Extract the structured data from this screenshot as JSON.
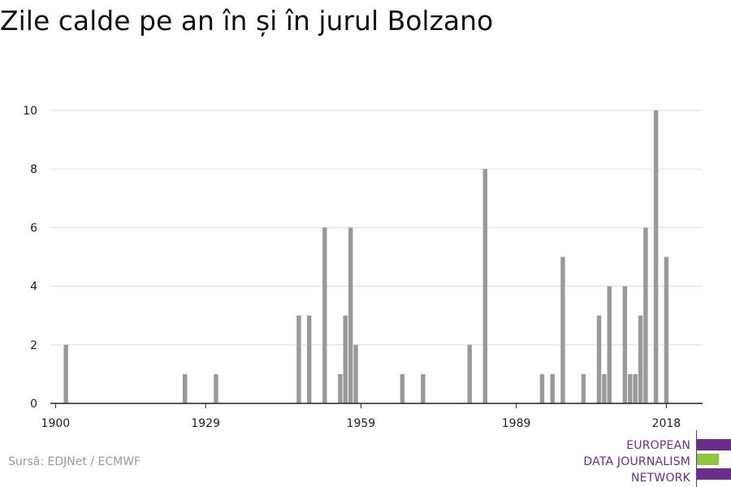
{
  "chart_data": {
    "type": "bar",
    "title": "Zile calde pe an în și în jurul Bolzano",
    "x": [
      1902,
      1925,
      1931,
      1947,
      1949,
      1952,
      1955,
      1956,
      1957,
      1958,
      1967,
      1971,
      1980,
      1983,
      1994,
      1996,
      1998,
      2002,
      2005,
      2006,
      2007,
      2010,
      2011,
      2012,
      2013,
      2014,
      2016,
      2018
    ],
    "values": [
      2,
      1,
      1,
      3,
      3,
      6,
      1,
      3,
      6,
      2,
      1,
      1,
      2,
      8,
      1,
      1,
      5,
      1,
      3,
      1,
      4,
      4,
      1,
      1,
      3,
      6,
      10,
      5
    ],
    "xlim": [
      1899,
      2025
    ],
    "ylim": [
      0,
      10
    ],
    "x_ticks": [
      1900,
      1929,
      1959,
      1989,
      2018
    ],
    "y_ticks": [
      0,
      2,
      4,
      6,
      8,
      10
    ],
    "grid": true,
    "colors": {
      "bar": "#999999",
      "grid": "#dddddd",
      "axis": "#222222"
    }
  },
  "footer": {
    "source": "Sursă: EDJNet / ECMWF"
  },
  "logo": {
    "lines": [
      "EUROPEAN",
      "DATA JOURNALISM",
      "NETWORK"
    ],
    "colors": {
      "purple": "#6b2d8b",
      "green": "#8dc63f"
    }
  }
}
